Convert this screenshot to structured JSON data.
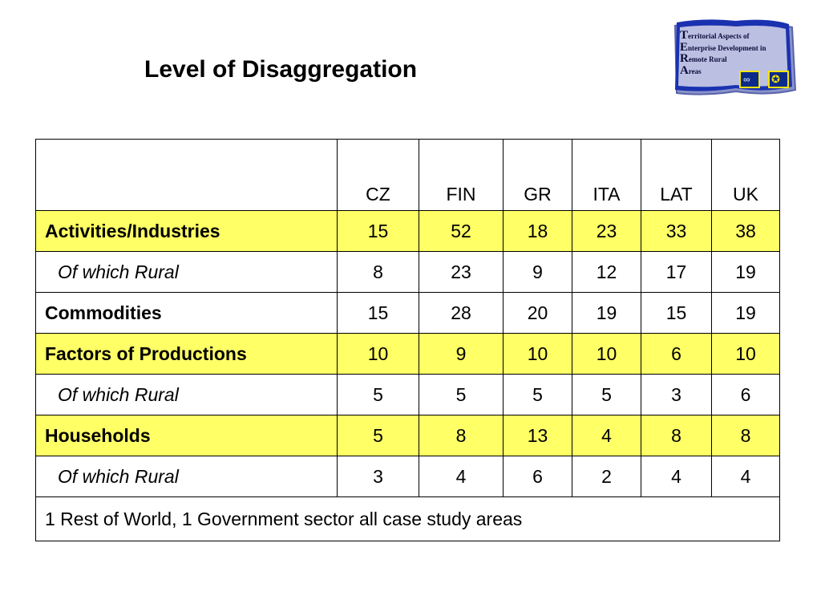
{
  "title": "Level of Disaggregation",
  "logo": {
    "lines": [
      {
        "initial": "T",
        "rest": "erritorial Aspects of"
      },
      {
        "initial": "E",
        "rest": "nterprise Development in"
      },
      {
        "initial": "R",
        "rest": "emote Rural"
      },
      {
        "initial": "A",
        "rest": "reas"
      }
    ],
    "colors": {
      "flag": "#1a32b0",
      "border": "#8a93c9",
      "star": "#f2e400"
    }
  },
  "table": {
    "columns": [
      "CZ",
      "FIN",
      "GR",
      "ITA",
      "LAT",
      "UK"
    ],
    "rows": [
      {
        "label": "Activities/Industries",
        "style": "bold",
        "highlight": true,
        "values": [
          "15",
          "52",
          "18",
          "23",
          "33",
          "38"
        ]
      },
      {
        "label": "Of which Rural",
        "style": "sub",
        "highlight": false,
        "values": [
          "8",
          "23",
          "9",
          "12",
          "17",
          "19"
        ]
      },
      {
        "label": "Commodities",
        "style": "bold",
        "highlight": false,
        "values": [
          "15",
          "28",
          "20",
          "19",
          "15",
          "19"
        ]
      },
      {
        "label": "Factors of Productions",
        "style": "bold",
        "highlight": true,
        "values": [
          "10",
          "9",
          "10",
          "10",
          "6",
          "10"
        ]
      },
      {
        "label": "Of which Rural",
        "style": "sub",
        "highlight": false,
        "values": [
          "5",
          "5",
          "5",
          "5",
          "3",
          "6"
        ]
      },
      {
        "label": "Households",
        "style": "bold",
        "highlight": true,
        "values": [
          "5",
          "8",
          "13",
          "4",
          "8",
          "8"
        ]
      },
      {
        "label": "Of which Rural",
        "style": "sub",
        "highlight": false,
        "values": [
          "3",
          "4",
          "6",
          "2",
          "4",
          "4"
        ]
      }
    ],
    "note": "1 Rest of World,  1 Government sector all case study areas",
    "highlight_color": "#ffff66"
  }
}
